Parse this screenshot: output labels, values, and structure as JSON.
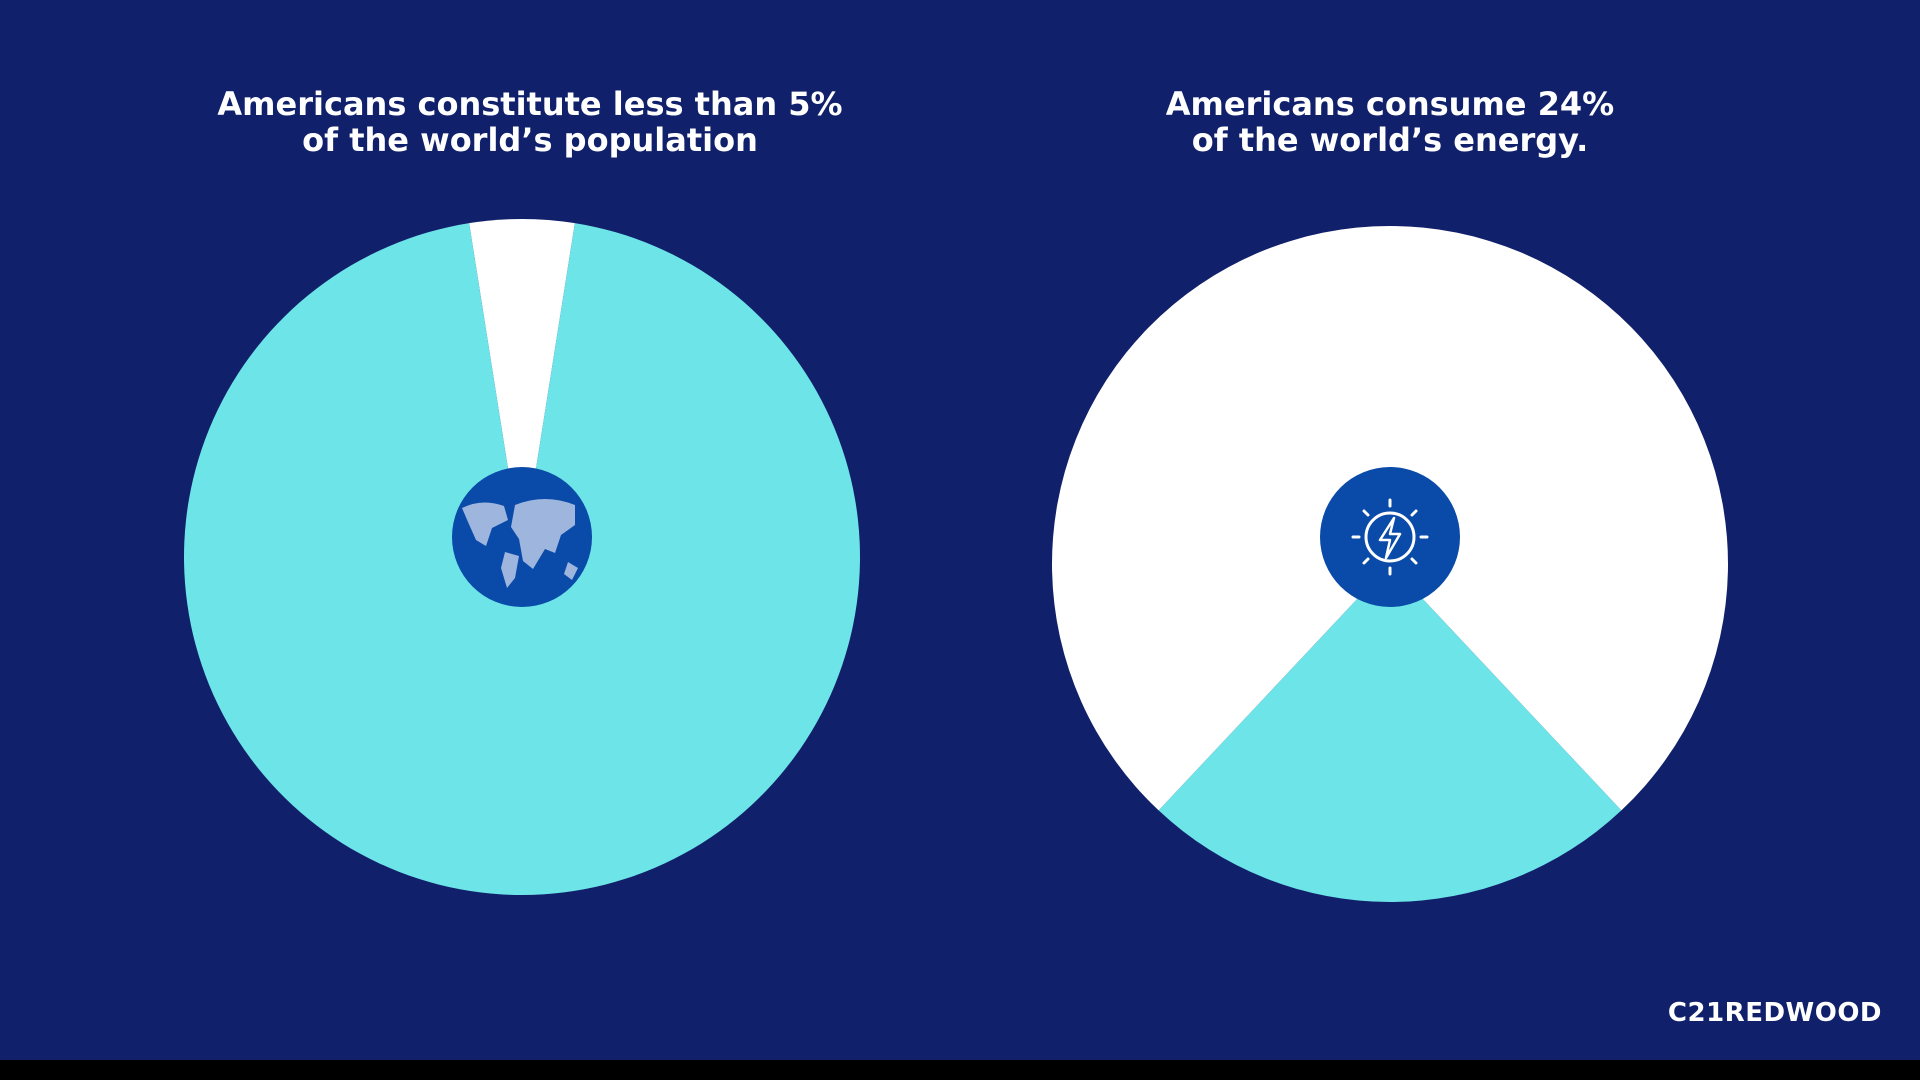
{
  "chart_data": [
    {
      "type": "pie",
      "title": "Americans constitute less than 5%\nof the world’s population",
      "values": [
        5,
        95
      ],
      "colors": [
        "#ffffff",
        "#6de4e8"
      ]
    },
    {
      "type": "pie",
      "title": "Americans consume 24%\nof the world’s energy.",
      "values": [
        24,
        76
      ],
      "colors": [
        "#6de4e8",
        "#ffffff"
      ]
    }
  ],
  "brand": "C21REDWOOD"
}
